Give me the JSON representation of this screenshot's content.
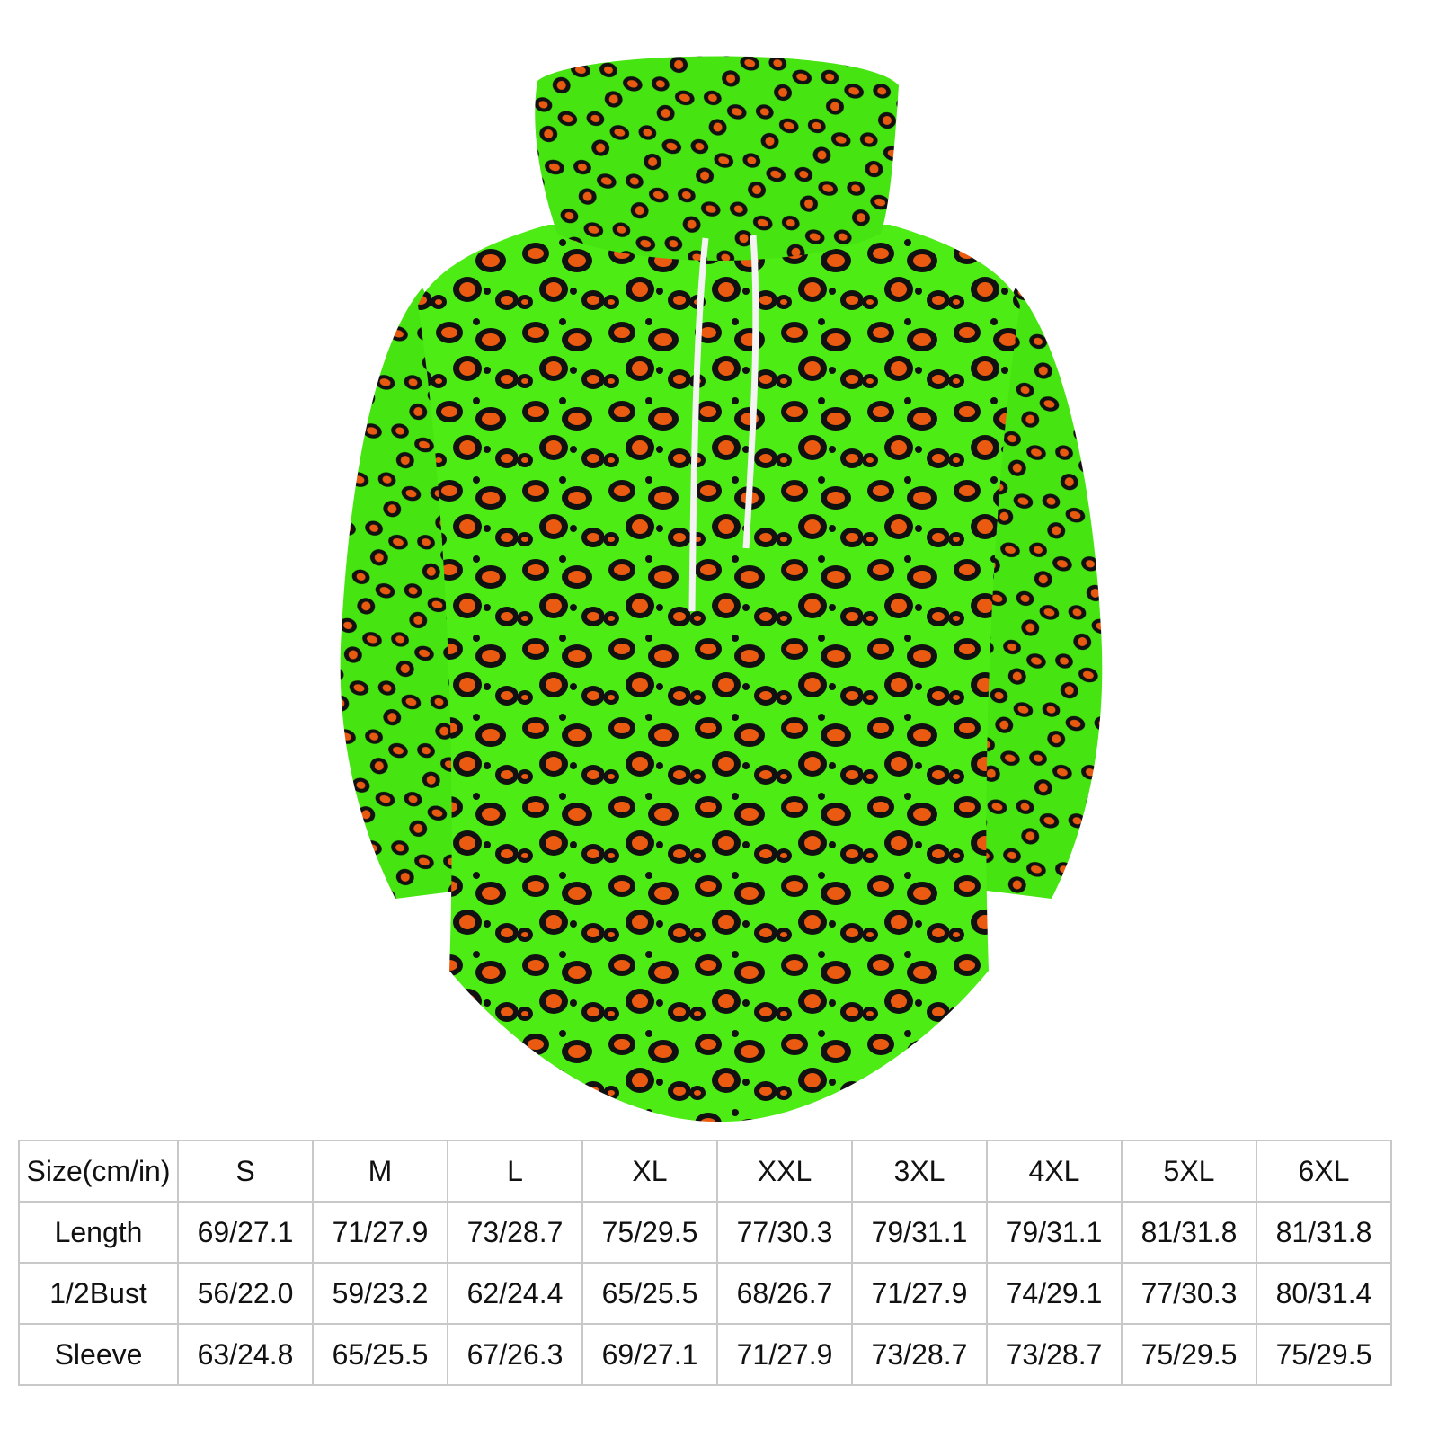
{
  "table": {
    "header": [
      "Size(cm/in)",
      "S",
      "M",
      "L",
      "XL",
      "XXL",
      "3XL",
      "4XL",
      "5XL",
      "6XL"
    ],
    "rows": [
      [
        "Length",
        "69/27.1",
        "71/27.9",
        "73/28.7",
        "75/29.5",
        "77/30.3",
        "79/31.1",
        "79/31.1",
        "81/31.8",
        "81/31.8"
      ],
      [
        "1/2Bust",
        "56/22.0",
        "59/23.2",
        "62/24.4",
        "65/25.5",
        "68/26.7",
        "71/27.9",
        "74/29.1",
        "77/30.3",
        "80/31.4"
      ],
      [
        "Sleeve",
        "63/24.8",
        "65/25.5",
        "67/26.3",
        "69/27.1",
        "71/27.9",
        "73/28.7",
        "73/28.7",
        "75/29.5",
        "75/29.5"
      ]
    ]
  }
}
